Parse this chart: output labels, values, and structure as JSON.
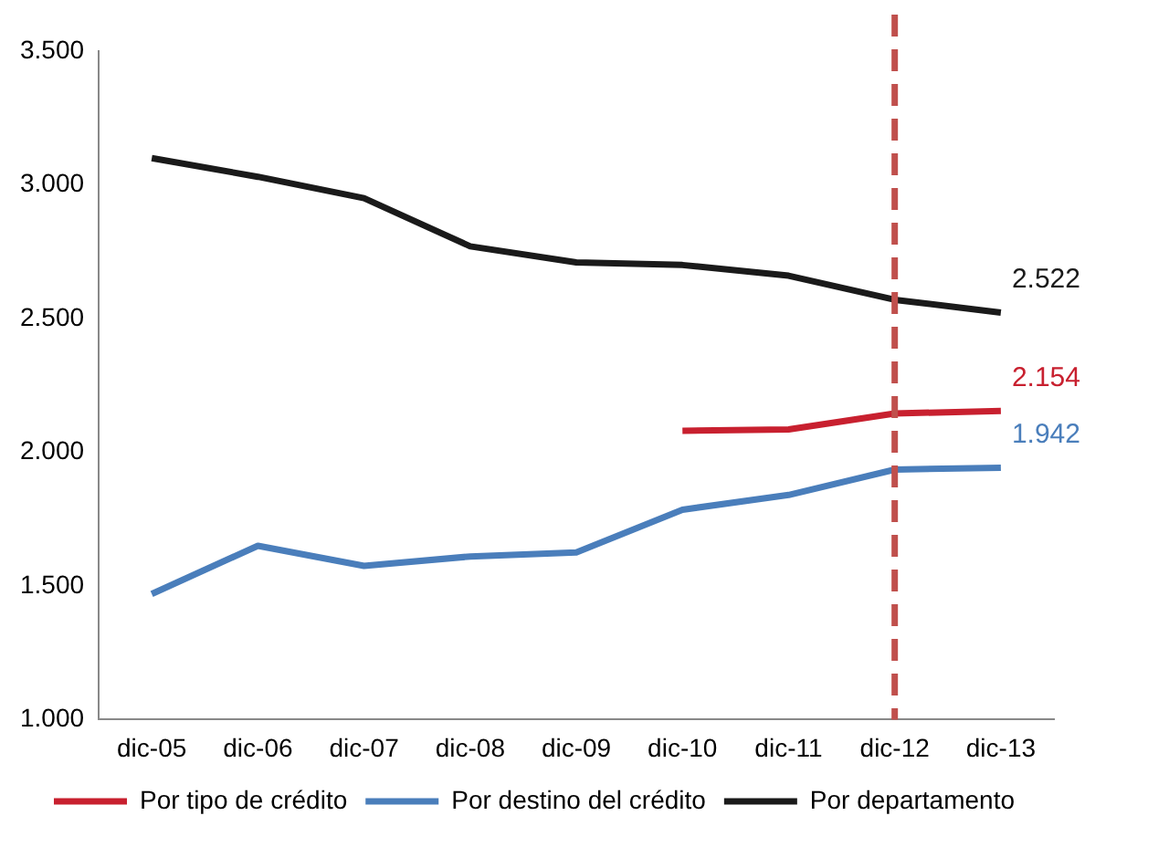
{
  "chart_data": {
    "type": "line",
    "categories": [
      "dic-05",
      "dic-06",
      "dic-07",
      "dic-08",
      "dic-09",
      "dic-10",
      "dic-11",
      "dic-12",
      "dic-13"
    ],
    "series": [
      {
        "name": "Por tipo de crédito",
        "color": "#c8202f",
        "values": [
          null,
          null,
          null,
          null,
          null,
          2080,
          2085,
          2145,
          2154
        ],
        "value_labels": [
          null,
          null,
          null,
          null,
          null,
          null,
          null,
          null,
          "2.154"
        ]
      },
      {
        "name": "Por destino del crédito",
        "color": "#4a7ebb",
        "values": [
          1470,
          1650,
          1575,
          1610,
          1625,
          1785,
          1840,
          1935,
          1942
        ],
        "value_labels": [
          null,
          null,
          null,
          null,
          null,
          null,
          null,
          null,
          "1.942"
        ]
      },
      {
        "name": "Por departamento",
        "color": "#1a1a1a",
        "values": [
          3100,
          3030,
          2950,
          2770,
          2710,
          2700,
          2660,
          2570,
          2522
        ],
        "value_labels": [
          null,
          null,
          null,
          null,
          null,
          null,
          null,
          null,
          "2.522"
        ]
      }
    ],
    "ylim": [
      1000,
      3500
    ],
    "yticks": [
      {
        "value": 1000,
        "label": "1.000"
      },
      {
        "value": 1500,
        "label": "1.500"
      },
      {
        "value": 2000,
        "label": "2.000"
      },
      {
        "value": 2500,
        "label": "2.500"
      },
      {
        "value": 3000,
        "label": "3.000"
      },
      {
        "value": 3500,
        "label": "3.500"
      }
    ],
    "ref_lines": [
      {
        "axis": "x",
        "value": "dic-12",
        "color": "#c0504d",
        "line_style": "dashed"
      }
    ],
    "grid": false,
    "legend": "bottom",
    "marker": "none",
    "line_style": "solid"
  }
}
